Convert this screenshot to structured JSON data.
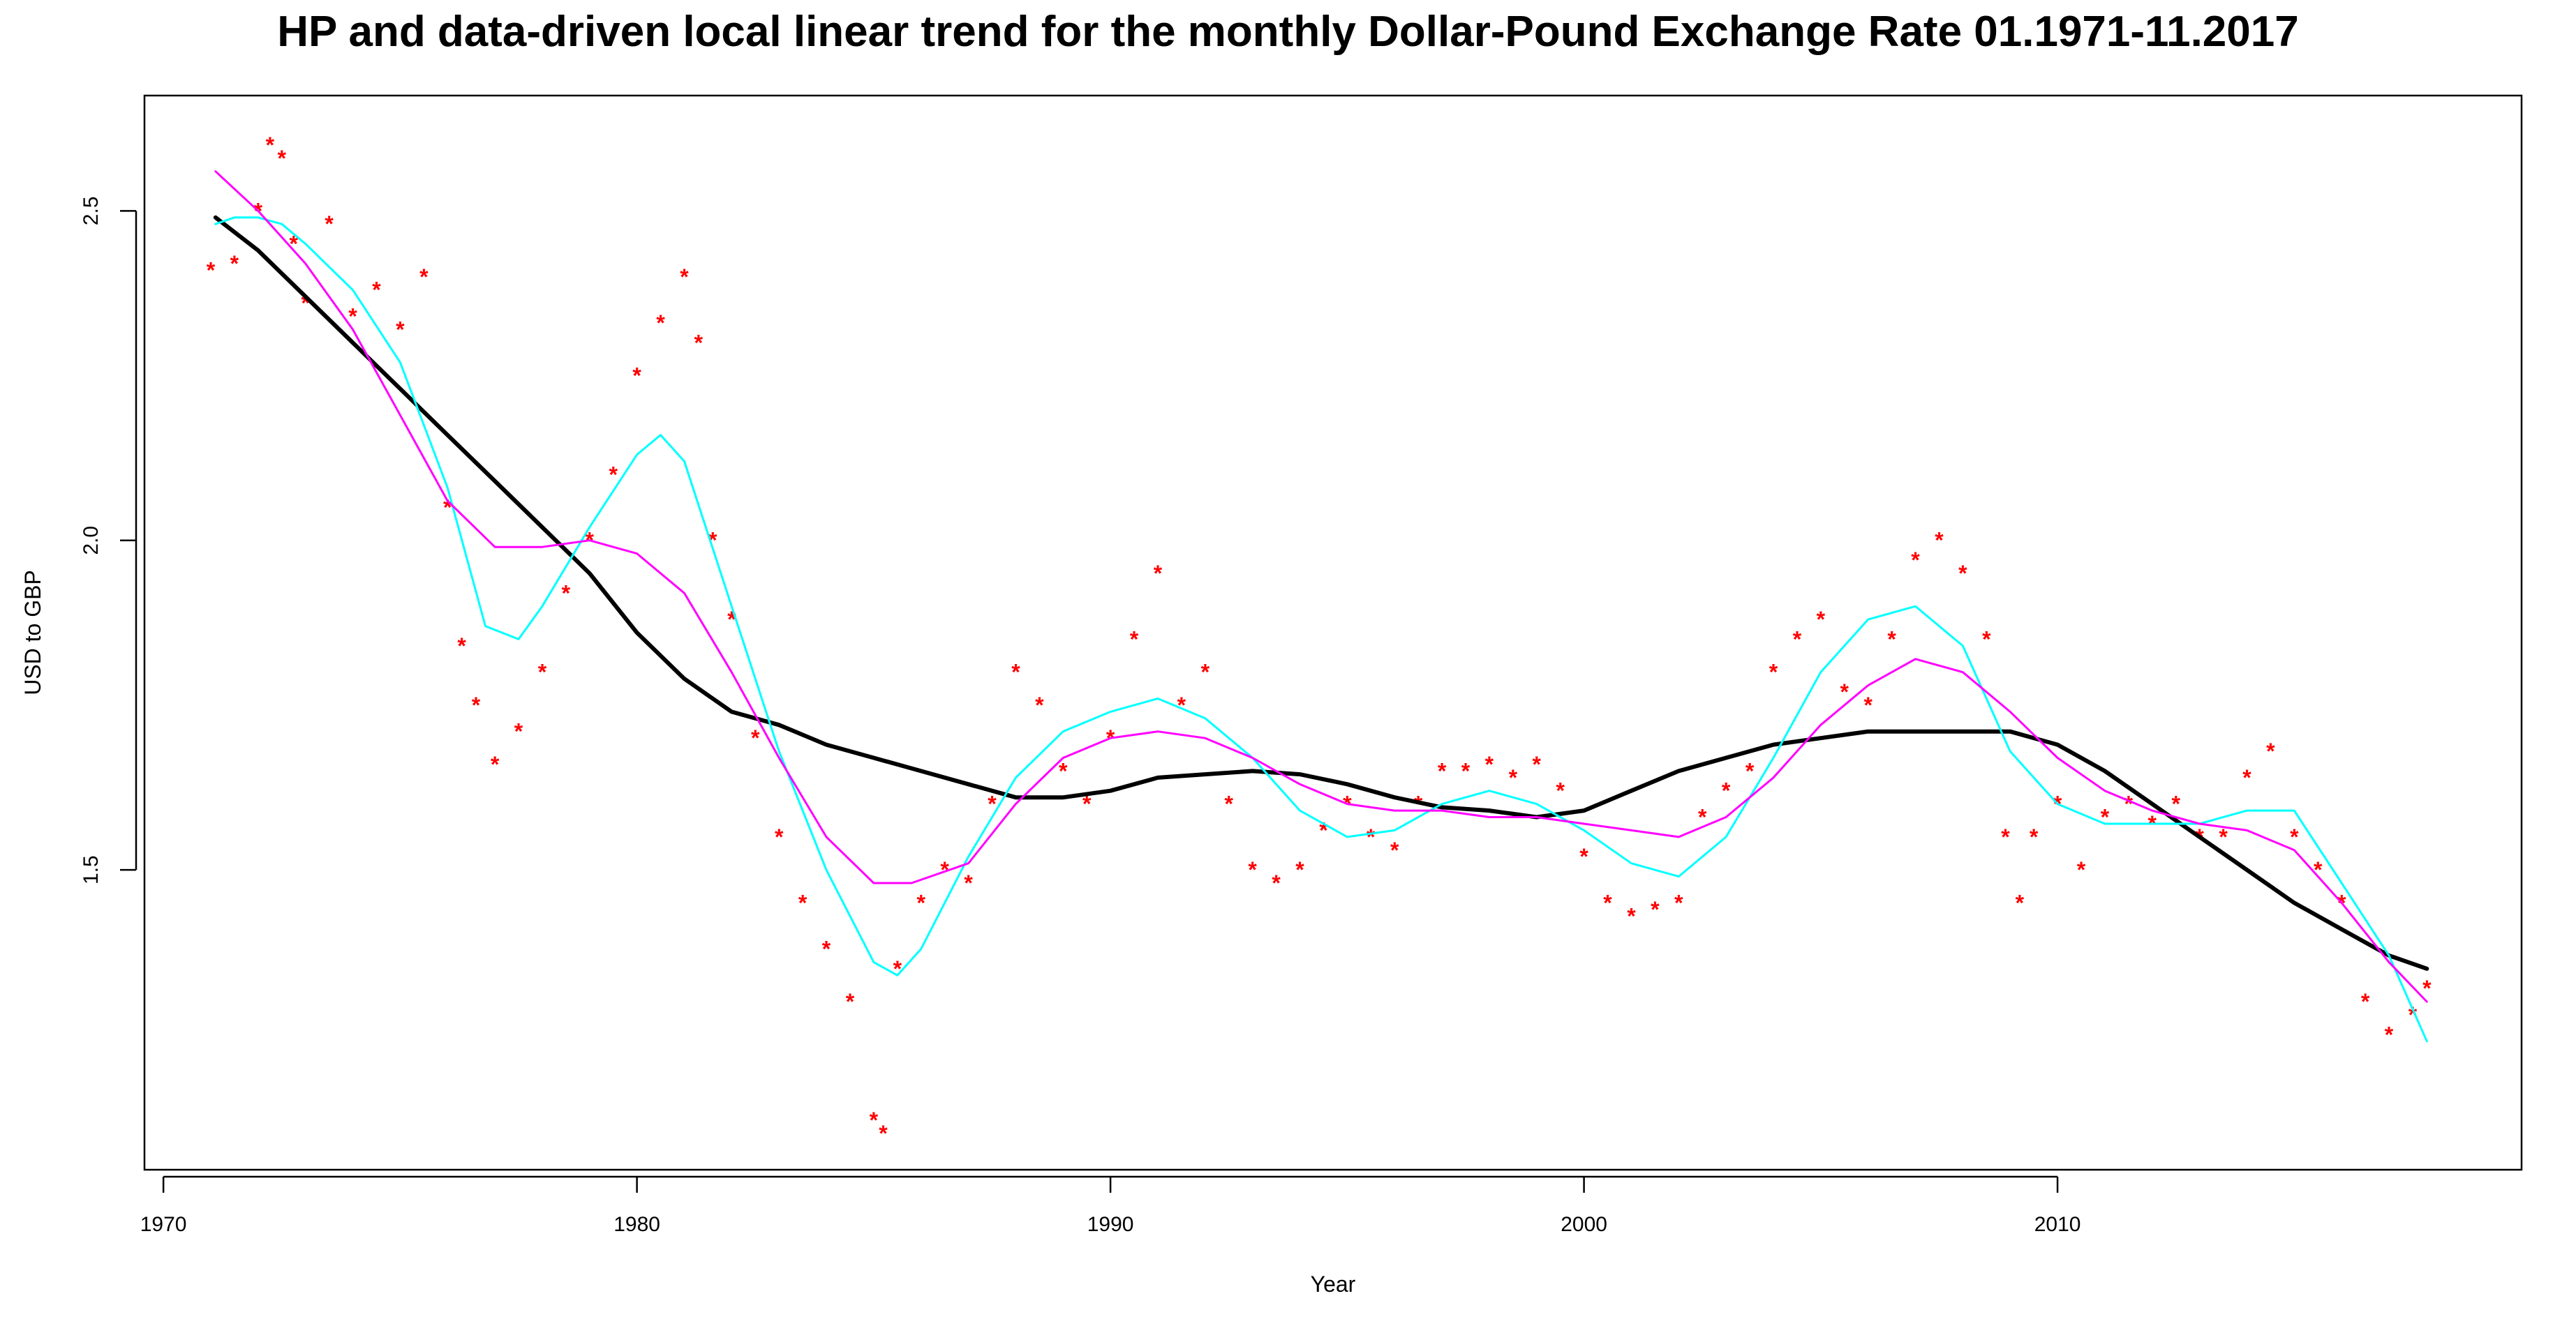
{
  "chart_data": {
    "type": "line",
    "title": "HP and data-driven local linear trend for the monthly Dollar-Pound Exchange Rate 01.1971-11.2017",
    "xlabel": "Year",
    "ylabel": "USD to GBP",
    "xlim": [
      1969.6,
      2019.8
    ],
    "ylim": [
      1.045,
      2.675
    ],
    "x_ticks": [
      1970,
      1980,
      1990,
      2000,
      2010
    ],
    "y_ticks": [
      1.5,
      2.0,
      2.5
    ],
    "grid": false,
    "legend": "none",
    "data_points": {
      "name": "",
      "marker": "*",
      "color": "#ff0000",
      "x": [
        1971.0,
        1971.5,
        1972.0,
        1972.25,
        1972.5,
        1972.75,
        1973.0,
        1973.5,
        1974.0,
        1974.5,
        1975.0,
        1975.5,
        1976.0,
        1976.3,
        1976.6,
        1977.0,
        1977.5,
        1978.0,
        1978.5,
        1979.0,
        1979.5,
        1980.0,
        1980.5,
        1981.0,
        1981.3,
        1981.6,
        1982.0,
        1982.5,
        1983.0,
        1983.5,
        1984.0,
        1984.5,
        1985.0,
        1985.2,
        1985.5,
        1986.0,
        1986.5,
        1987.0,
        1987.5,
        1988.0,
        1988.5,
        1989.0,
        1989.5,
        1990.0,
        1990.5,
        1991.0,
        1991.5,
        1992.0,
        1992.5,
        1993.0,
        1993.5,
        1994.0,
        1994.5,
        1995.0,
        1995.5,
        1996.0,
        1996.5,
        1997.0,
        1997.5,
        1998.0,
        1998.5,
        1999.0,
        1999.5,
        2000.0,
        2000.5,
        2001.0,
        2001.5,
        2002.0,
        2002.5,
        2003.0,
        2003.5,
        2004.0,
        2004.5,
        2005.0,
        2005.5,
        2006.0,
        2006.5,
        2007.0,
        2007.5,
        2008.0,
        2008.5,
        2008.9,
        2009.2,
        2009.5,
        2010.0,
        2010.5,
        2011.0,
        2011.5,
        2012.0,
        2012.5,
        2013.0,
        2013.5,
        2014.0,
        2014.5,
        2015.0,
        2015.5,
        2016.0,
        2016.5,
        2017.0,
        2017.5,
        2017.8
      ],
      "y": [
        2.41,
        2.42,
        2.5,
        2.6,
        2.58,
        2.45,
        2.36,
        2.48,
        2.34,
        2.38,
        2.32,
        2.4,
        2.05,
        1.84,
        1.75,
        1.66,
        1.71,
        1.8,
        1.92,
        2.0,
        2.1,
        2.25,
        2.33,
        2.4,
        2.3,
        2.0,
        1.88,
        1.7,
        1.55,
        1.45,
        1.38,
        1.3,
        1.12,
        1.1,
        1.35,
        1.45,
        1.5,
        1.48,
        1.6,
        1.8,
        1.75,
        1.65,
        1.6,
        1.7,
        1.85,
        1.95,
        1.75,
        1.8,
        1.6,
        1.5,
        1.48,
        1.5,
        1.56,
        1.6,
        1.55,
        1.53,
        1.6,
        1.65,
        1.65,
        1.66,
        1.64,
        1.66,
        1.62,
        1.52,
        1.45,
        1.43,
        1.44,
        1.45,
        1.58,
        1.62,
        1.65,
        1.8,
        1.85,
        1.88,
        1.77,
        1.75,
        1.85,
        1.97,
        2.0,
        1.95,
        1.85,
        1.55,
        1.45,
        1.55,
        1.6,
        1.5,
        1.58,
        1.6,
        1.57,
        1.6,
        1.55,
        1.55,
        1.64,
        1.68,
        1.55,
        1.5,
        1.45,
        1.3,
        1.25,
        1.28,
        1.32
      ]
    },
    "series": [
      {
        "name": "",
        "color": "#000000",
        "x": [
          1971.1,
          1972,
          1973,
          1974,
          1975,
          1976,
          1977,
          1978,
          1979,
          1980,
          1981,
          1982,
          1983,
          1984,
          1985,
          1986,
          1987,
          1988,
          1989,
          1990,
          1991,
          1992,
          1993,
          1994,
          1995,
          1996,
          1997,
          1998,
          1999,
          2000,
          2001,
          2002,
          2003,
          2004,
          2005,
          2006,
          2007,
          2008,
          2009,
          2010,
          2011,
          2012,
          2013,
          2014,
          2015,
          2016,
          2017,
          2017.8
        ],
        "y": [
          2.49,
          2.44,
          2.37,
          2.3,
          2.23,
          2.16,
          2.09,
          2.02,
          1.95,
          1.86,
          1.79,
          1.74,
          1.72,
          1.69,
          1.67,
          1.65,
          1.63,
          1.61,
          1.61,
          1.62,
          1.64,
          1.645,
          1.65,
          1.645,
          1.63,
          1.61,
          1.595,
          1.59,
          1.58,
          1.59,
          1.62,
          1.65,
          1.67,
          1.69,
          1.7,
          1.71,
          1.71,
          1.71,
          1.71,
          1.69,
          1.65,
          1.6,
          1.55,
          1.5,
          1.45,
          1.41,
          1.37,
          1.35
        ]
      },
      {
        "name": "",
        "color": "#00ffff",
        "x": [
          1971.1,
          1971.5,
          1972,
          1972.5,
          1973,
          1974,
          1975,
          1976,
          1976.8,
          1977.5,
          1978,
          1979,
          1980,
          1980.5,
          1981,
          1982,
          1983,
          1984,
          1985,
          1985.5,
          1986,
          1987,
          1988,
          1989,
          1990,
          1991,
          1992,
          1993,
          1994,
          1995,
          1996,
          1997,
          1998,
          1999,
          2000,
          2001,
          2002,
          2003,
          2004,
          2005,
          2006,
          2007,
          2008,
          2009,
          2010,
          2011,
          2012,
          2013,
          2014,
          2015,
          2016,
          2017,
          2017.8
        ],
        "y": [
          2.48,
          2.49,
          2.49,
          2.48,
          2.45,
          2.38,
          2.27,
          2.08,
          1.87,
          1.85,
          1.9,
          2.02,
          2.13,
          2.16,
          2.12,
          1.9,
          1.68,
          1.5,
          1.36,
          1.34,
          1.38,
          1.52,
          1.64,
          1.71,
          1.74,
          1.76,
          1.73,
          1.67,
          1.59,
          1.55,
          1.56,
          1.6,
          1.62,
          1.6,
          1.56,
          1.51,
          1.49,
          1.55,
          1.67,
          1.8,
          1.88,
          1.9,
          1.84,
          1.68,
          1.6,
          1.57,
          1.57,
          1.57,
          1.59,
          1.59,
          1.48,
          1.37,
          1.24
        ]
      },
      {
        "name": "",
        "color": "#ff00ff",
        "x": [
          1971.1,
          1972,
          1973,
          1974,
          1975,
          1976,
          1977,
          1978,
          1979,
          1980,
          1981,
          1982,
          1983,
          1984,
          1985,
          1985.8,
          1987,
          1988,
          1989,
          1990,
          1991,
          1992,
          1993,
          1994,
          1995,
          1996,
          1997,
          1998,
          1999,
          2000,
          2001,
          2002,
          2003,
          2004,
          2005,
          2006,
          2007,
          2008,
          2009,
          2010,
          2011,
          2012,
          2013,
          2014,
          2015,
          2016,
          2017,
          2017.8
        ],
        "y": [
          2.56,
          2.5,
          2.42,
          2.32,
          2.19,
          2.06,
          1.99,
          1.99,
          2.0,
          1.98,
          1.92,
          1.8,
          1.67,
          1.55,
          1.48,
          1.48,
          1.51,
          1.6,
          1.67,
          1.7,
          1.71,
          1.7,
          1.67,
          1.63,
          1.6,
          1.59,
          1.59,
          1.58,
          1.58,
          1.57,
          1.56,
          1.55,
          1.58,
          1.64,
          1.72,
          1.78,
          1.82,
          1.8,
          1.74,
          1.67,
          1.62,
          1.59,
          1.57,
          1.56,
          1.53,
          1.45,
          1.36,
          1.3
        ]
      }
    ]
  }
}
